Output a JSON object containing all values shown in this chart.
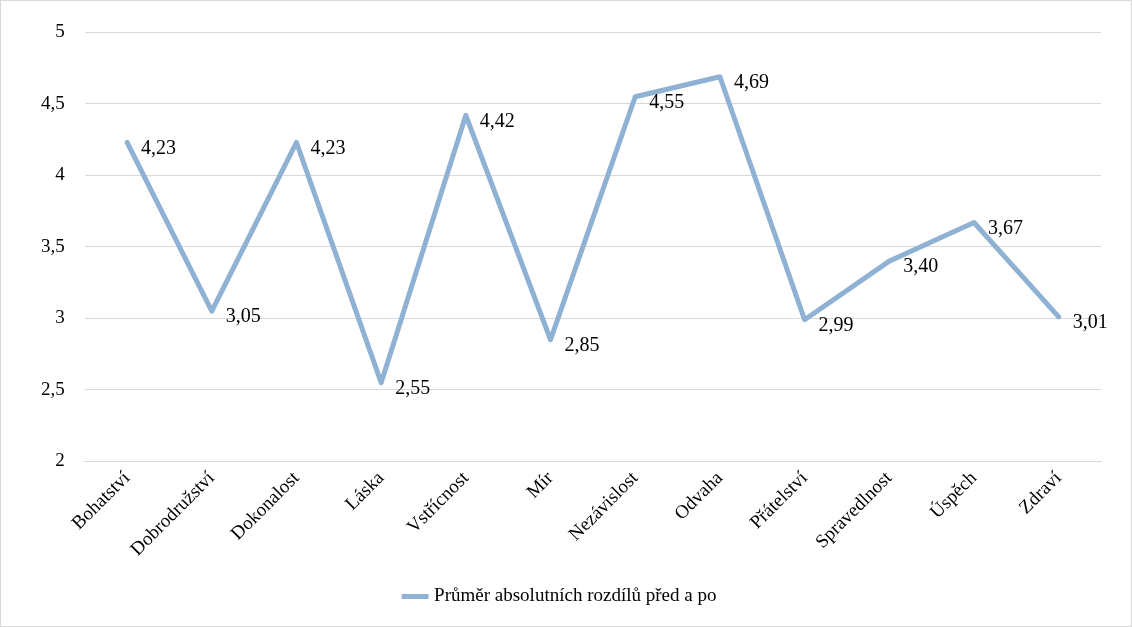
{
  "chart_data": {
    "type": "line",
    "categories": [
      "Bohatství",
      "Dobrodružství",
      "Dokonalost",
      "Láska",
      "Vstřícnost",
      "Mír",
      "Nezávislost",
      "Odvaha",
      "Přátelství",
      "Spravedlnost",
      "Úspěch",
      "Zdraví"
    ],
    "series": [
      {
        "name": "Průměr absolutních rozdílů před a po",
        "color": "#8fb1d3",
        "values": [
          4.23,
          3.05,
          4.23,
          2.55,
          4.42,
          2.85,
          4.55,
          4.69,
          2.99,
          3.4,
          3.67,
          3.01
        ],
        "value_labels": [
          "4,23",
          "3,05",
          "4,23",
          "2,55",
          "4,42",
          "2,85",
          "4,55",
          "4,69",
          "2,99",
          "3,40",
          "3,67",
          "3,01"
        ]
      }
    ],
    "ylim": [
      2,
      5
    ],
    "yticks": [
      2,
      {
        "value": 2.5,
        "label": "2,5"
      },
      3,
      {
        "value": 3.5,
        "label": "3,5"
      },
      4,
      {
        "value": 4.5,
        "label": "4,5"
      },
      5
    ],
    "grid": "y",
    "legend": "bottom",
    "marker": "none",
    "line_style": "solid"
  }
}
